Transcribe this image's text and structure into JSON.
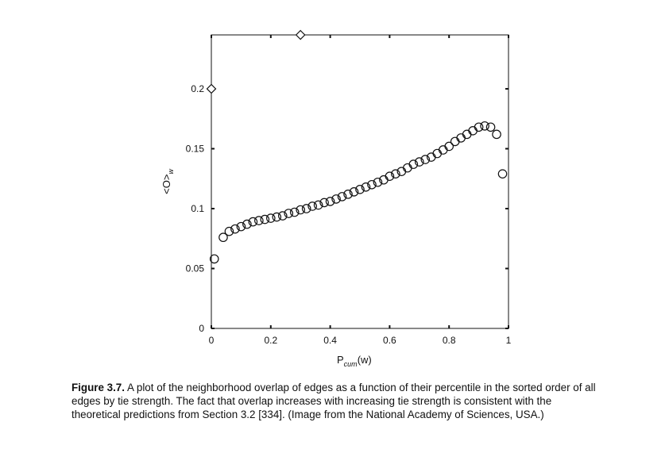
{
  "chart_data": {
    "type": "scatter",
    "xlabel_main": "P",
    "xlabel_sub": "cum",
    "xlabel_arg": "(w)",
    "ylabel": "<O>",
    "ylabel_sub": "w",
    "xlim": [
      0,
      1
    ],
    "ylim": [
      0,
      0.245
    ],
    "x_ticks": [
      0,
      0.2,
      0.4,
      0.6,
      0.8,
      1
    ],
    "x_tick_labels": [
      "0",
      "0.2",
      "0.4",
      "0.6",
      "0.8",
      "1"
    ],
    "y_ticks": [
      0,
      0.05,
      0.1,
      0.15,
      0.2
    ],
    "y_tick_labels": [
      "0",
      "0.05",
      "0.1",
      "0.15",
      "0.2"
    ],
    "grid": false,
    "series": [
      {
        "marker": "circle",
        "x": [
          0.01,
          0.04,
          0.06,
          0.08,
          0.1,
          0.12,
          0.14,
          0.16,
          0.18,
          0.2,
          0.22,
          0.24,
          0.26,
          0.28,
          0.3,
          0.32,
          0.34,
          0.36,
          0.38,
          0.4,
          0.42,
          0.44,
          0.46,
          0.48,
          0.5,
          0.52,
          0.54,
          0.56,
          0.58,
          0.6,
          0.62,
          0.64,
          0.66,
          0.68,
          0.7,
          0.72,
          0.74,
          0.76,
          0.78,
          0.8,
          0.82,
          0.84,
          0.86,
          0.88,
          0.9,
          0.92,
          0.94,
          0.96,
          0.98
        ],
        "y": [
          0.058,
          0.076,
          0.081,
          0.083,
          0.085,
          0.087,
          0.089,
          0.09,
          0.091,
          0.092,
          0.093,
          0.094,
          0.096,
          0.097,
          0.099,
          0.1,
          0.102,
          0.103,
          0.105,
          0.106,
          0.108,
          0.11,
          0.112,
          0.114,
          0.116,
          0.118,
          0.12,
          0.122,
          0.124,
          0.127,
          0.129,
          0.131,
          0.134,
          0.137,
          0.139,
          0.141,
          0.143,
          0.146,
          0.149,
          0.152,
          0.156,
          0.159,
          0.162,
          0.165,
          0.168,
          0.169,
          0.168,
          0.162,
          0.129
        ]
      },
      {
        "marker": "diamond",
        "x": [
          0.0,
          0.3
        ],
        "y": [
          0.2,
          0.245
        ]
      }
    ]
  },
  "caption": {
    "label": "Figure 3.7.",
    "text": "A plot of the neighborhood overlap of edges as a function of their percentile in the sorted order of all edges by tie strength. The fact that overlap increases with increasing tie strength is consistent with the theoretical predictions from Section 3.2 [334]. (Image from the National Academy of Sciences, USA.)"
  }
}
